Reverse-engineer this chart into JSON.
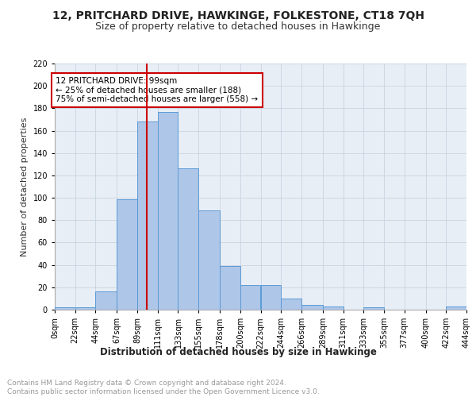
{
  "title": "12, PRITCHARD DRIVE, HAWKINGE, FOLKESTONE, CT18 7QH",
  "subtitle": "Size of property relative to detached houses in Hawkinge",
  "xlabel": "Distribution of detached houses by size in Hawkinge",
  "ylabel": "Number of detached properties",
  "bar_edges": [
    0,
    22,
    44,
    67,
    89,
    111,
    133,
    155,
    178,
    200,
    222,
    244,
    266,
    289,
    311,
    333,
    355,
    377,
    400,
    422,
    444
  ],
  "bar_heights": [
    2,
    2,
    16,
    99,
    168,
    177,
    126,
    89,
    39,
    22,
    22,
    10,
    4,
    3,
    0,
    2,
    0,
    0,
    0,
    3
  ],
  "tick_labels": [
    "0sqm",
    "22sqm",
    "44sqm",
    "67sqm",
    "89sqm",
    "111sqm",
    "133sqm",
    "155sqm",
    "178sqm",
    "200sqm",
    "222sqm",
    "244sqm",
    "266sqm",
    "289sqm",
    "311sqm",
    "333sqm",
    "355sqm",
    "377sqm",
    "400sqm",
    "422sqm",
    "444sqm"
  ],
  "bar_color": "#aec6e8",
  "bar_edge_color": "#5b9bd5",
  "vline_x": 99,
  "vline_color": "#cc0000",
  "annotation_text": "12 PRITCHARD DRIVE: 99sqm\n← 25% of detached houses are smaller (188)\n75% of semi-detached houses are larger (558) →",
  "annotation_box_color": "#ffffff",
  "annotation_box_edge": "#cc0000",
  "ylim": [
    0,
    220
  ],
  "yticks": [
    0,
    20,
    40,
    60,
    80,
    100,
    120,
    140,
    160,
    180,
    200,
    220
  ],
  "grid_color": "#c8d4e3",
  "bg_color": "#e8eef5",
  "fig_bg_color": "#ffffff",
  "footnote": "Contains HM Land Registry data © Crown copyright and database right 2024.\nContains public sector information licensed under the Open Government Licence v3.0.",
  "title_fontsize": 10,
  "subtitle_fontsize": 9,
  "xlabel_fontsize": 8.5,
  "ylabel_fontsize": 8,
  "tick_fontsize": 7,
  "annot_fontsize": 7.5,
  "footnote_fontsize": 6.5
}
